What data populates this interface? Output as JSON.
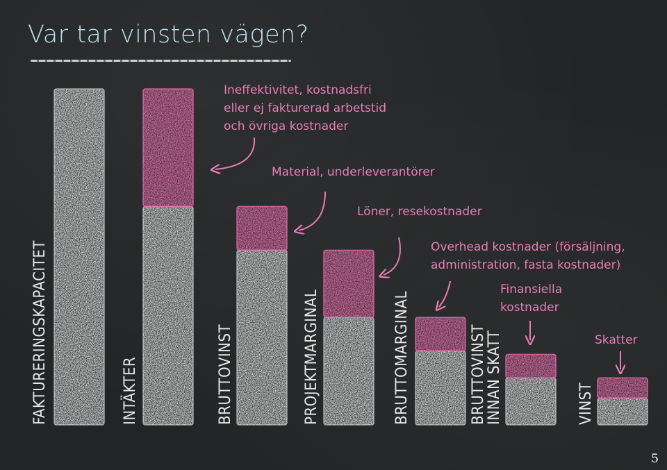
{
  "title": "Var tar vinsten vägen?",
  "page_number": "5",
  "colors": {
    "chalk_white": "#d9d9d9",
    "chalk_pink": "#e46ba8",
    "annotation_pink": "#e77fb4",
    "title_blue": "#bfe3ec",
    "board": "#222425"
  },
  "chart_data": {
    "type": "bar",
    "stacked": true,
    "categories": [
      "FAKTURERINGSKAPACITET",
      "INTÄKTER",
      "BRUTTOVINST",
      "PROJEKTMARGINAL",
      "BRUTTOMARGINAL",
      "BRUTTOVINST\nINNAN SKATT",
      "VINST"
    ],
    "series": [
      {
        "values": [
          100,
          65,
          52,
          32,
          22,
          14,
          8
        ]
      },
      {
        "values": [
          0,
          35,
          13,
          20,
          10,
          7,
          6
        ]
      }
    ],
    "annotations": [
      "Ineffektivitet, kostnadsfri\neller ej fakturerad arbetstid\noch övriga kostnader",
      "Material, underleverantörer",
      "Löner, resekostnader",
      "Overhead kostnader (försäljning,\nadministration, fasta kostnader)",
      "Finansiella\nkostnader",
      "Skatter"
    ],
    "ylim": [
      0,
      100
    ],
    "grid": false,
    "legend": "none"
  }
}
